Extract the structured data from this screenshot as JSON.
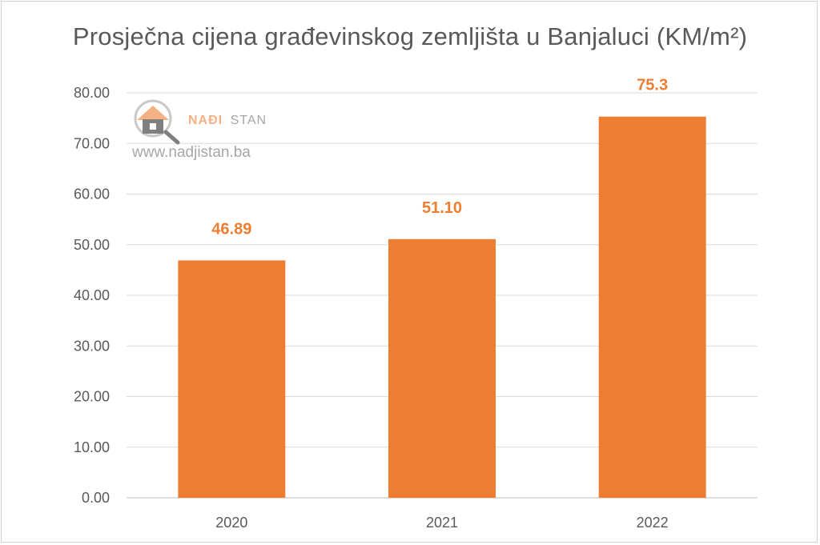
{
  "chart_data": {
    "type": "bar",
    "title": "Prosječna cijena građevinskog zemljišta u Banjaluci (KM/m²)",
    "categories": [
      "2020",
      "2021",
      "2022"
    ],
    "values": [
      46.89,
      51.1,
      75.3
    ],
    "data_labels": [
      "46.89",
      "51.10",
      "75.3"
    ],
    "yticks": [
      "0.00",
      "10.00",
      "20.00",
      "30.00",
      "40.00",
      "50.00",
      "60.00",
      "70.00",
      "80.00"
    ],
    "ylim": [
      0,
      80
    ],
    "grid": true,
    "legend": "none",
    "bar_color": "#ed7d31"
  },
  "watermark": {
    "brand_bold": "NAĐI",
    "brand_light": "STAN",
    "url": "www.nadjistan.ba",
    "icon": "house-magnifier-icon"
  }
}
